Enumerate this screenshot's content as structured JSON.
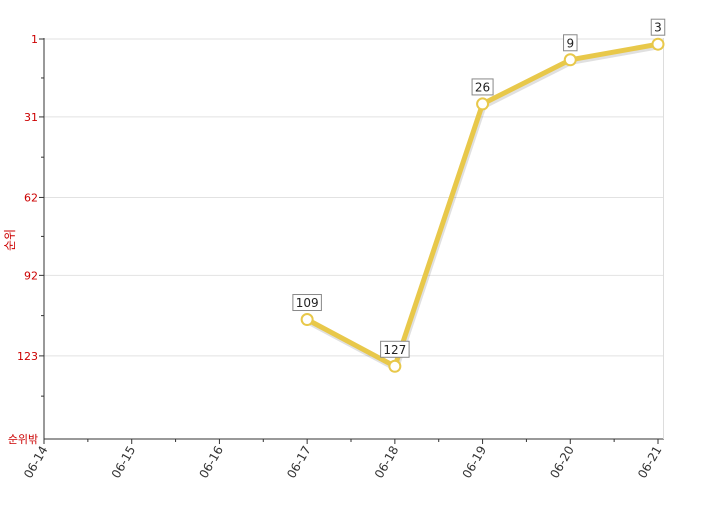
{
  "chart_data": {
    "type": "line",
    "ylabel": "순위",
    "y_reversed": true,
    "ylim": [
      1,
      155
    ],
    "yticks": [
      1,
      31,
      62,
      92,
      123
    ],
    "y_bottom_label": "순위밖",
    "categories": [
      "06-14",
      "06-15",
      "06-16",
      "06-17",
      "06-18",
      "06-19",
      "06-20",
      "06-21"
    ],
    "series": [
      {
        "values": [
          null,
          null,
          null,
          109,
          127,
          26,
          9,
          3
        ],
        "color": "#e8c84a"
      }
    ],
    "grid": true
  }
}
